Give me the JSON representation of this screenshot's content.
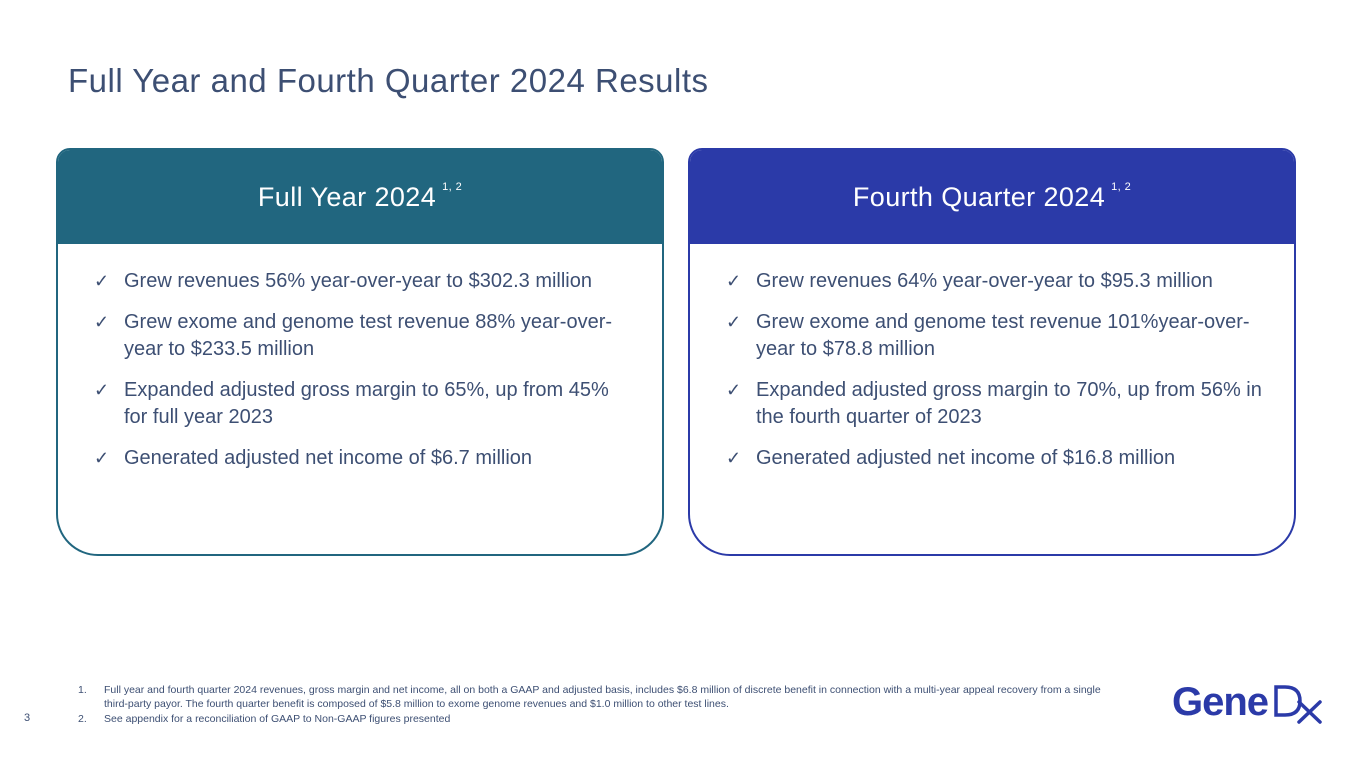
{
  "title": "Full Year and Fourth Quarter 2024 Results",
  "cards": [
    {
      "heading": "Full Year 2024",
      "superscript": "1, 2",
      "bullets": [
        "Grew revenues 56% year-over-year to $302.3 million",
        "Grew exome and genome test revenue 88% year-over-year to $233.5 million",
        "Expanded adjusted gross margin to 65%, up from 45% for full year 2023",
        "Generated adjusted net income of $6.7 million"
      ]
    },
    {
      "heading": "Fourth Quarter 2024",
      "superscript": "1, 2",
      "bullets": [
        "Grew revenues 64% year-over-year to $95.3 million",
        "Grew exome and genome test revenue 101%year-over-year to $78.8 million",
        "Expanded adjusted gross margin to 70%, up from 56% in the fourth quarter of 2023",
        "Generated adjusted net income of $16.8 million"
      ]
    }
  ],
  "check_glyph": "✓",
  "footnotes": [
    {
      "num": "1.",
      "text": "Full year and fourth quarter 2024 revenues, gross margin and net income, all on both a GAAP and adjusted basis, includes $6.8 million of discrete benefit in connection with a multi-year appeal recovery from a single third-party payor. The fourth quarter benefit is composed of $5.8 million to exome genome revenues and $1.0 million to other test lines."
    },
    {
      "num": "2.",
      "text": "See appendix for a reconciliation of GAAP to Non-GAAP figures presented"
    }
  ],
  "page_number": "3",
  "logo_text": "GeneDx",
  "colors": {
    "full_year": "#21667f",
    "fourth_quarter": "#2b3aa8",
    "text": "#3d4f73"
  }
}
